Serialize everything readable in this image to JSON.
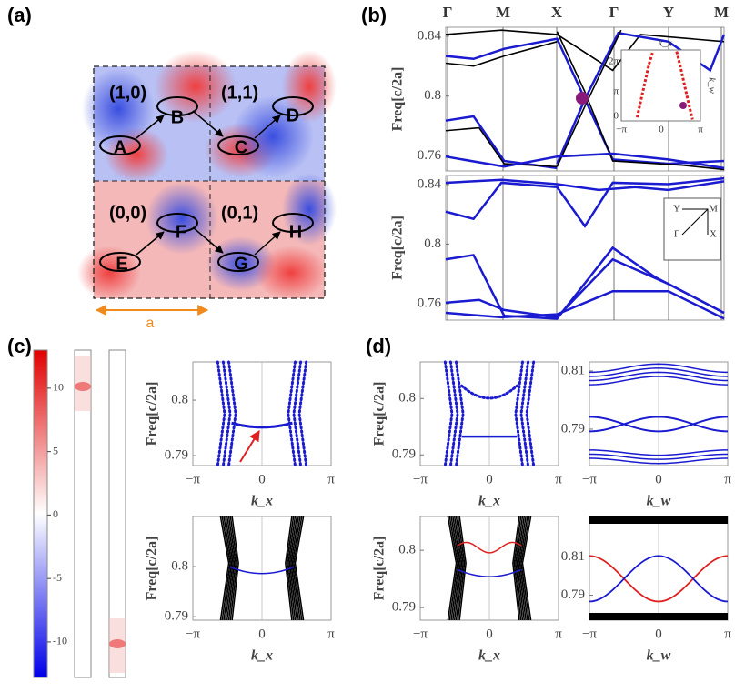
{
  "panels": {
    "a": {
      "label": "(a)",
      "cells": [
        "(1,0)",
        "(1,1)",
        "(0,0)",
        "(0,1)"
      ],
      "sites": [
        "A",
        "B",
        "C",
        "D",
        "E",
        "F",
        "G",
        "H"
      ],
      "scale_label": "a"
    },
    "b": {
      "label": "(b)",
      "k_points": [
        "Γ",
        "M",
        "X",
        "Γ",
        "Y",
        "M"
      ],
      "inset": {
        "xlabel": "k_x",
        "ylabel": "k_w",
        "yticks": [
          "2π",
          "π",
          0
        ],
        "xticks": [
          "−π",
          0,
          "π"
        ]
      },
      "bz_labels": [
        "Y",
        "M",
        "Γ",
        "X"
      ]
    },
    "c": {
      "label": "(c)",
      "colorbar_ticks": [
        10,
        5,
        0,
        -5,
        -10
      ],
      "clim": [
        -12.8,
        13.0
      ]
    },
    "d": {
      "label": "(d)"
    }
  },
  "plots": [
    {
      "ylabel": "Freq[c/2a]",
      "ylim": [
        0.75,
        0.846
      ],
      "yticks": [
        0.76,
        0.8,
        0.84
      ]
    },
    {
      "ylabel": "Freq[c/2a]",
      "ylim": [
        0.749,
        0.846
      ],
      "yticks": [
        0.76,
        0.8,
        0.84
      ]
    },
    {
      "ylabel": "Freq[c/2a]",
      "ylim": [
        0.7882,
        0.8069
      ],
      "yticks": [
        0.79,
        0.8
      ],
      "xlabel": "k_x",
      "xticks": [
        "−π",
        0,
        "π"
      ]
    },
    {
      "ylabel": "Freq[c/2a]",
      "ylim": [
        0.7893,
        0.81
      ],
      "yticks": [
        0.79,
        0.8
      ],
      "xlabel": "k_x",
      "xticks": [
        "−π",
        0,
        "π"
      ]
    },
    {
      "ylabel": "Freq[c/2a]",
      "ylim": [
        0.7881,
        0.8065
      ],
      "yticks": [
        0.79,
        0.8
      ],
      "xlabel": "k_x",
      "xticks": [
        "−π",
        0,
        "π"
      ]
    },
    {
      "ylim": [
        0.7775,
        0.8131
      ],
      "yticks": [
        0.79,
        0.81
      ],
      "xlabel": "k_w",
      "xticks": [
        "−π",
        0,
        "π"
      ]
    },
    {
      "ylabel": "Freq[c/2a]",
      "ylim": [
        0.7878,
        0.8059
      ],
      "yticks": [
        0.79,
        0.8
      ],
      "xlabel": "k_x",
      "xticks": [
        "−π",
        0,
        "π"
      ]
    },
    {
      "ylim": [
        0.777,
        0.831
      ],
      "yticks": [
        0.79,
        0.81
      ],
      "xlabel": "k_w",
      "xticks": [
        "−π",
        0,
        "π"
      ]
    }
  ]
}
